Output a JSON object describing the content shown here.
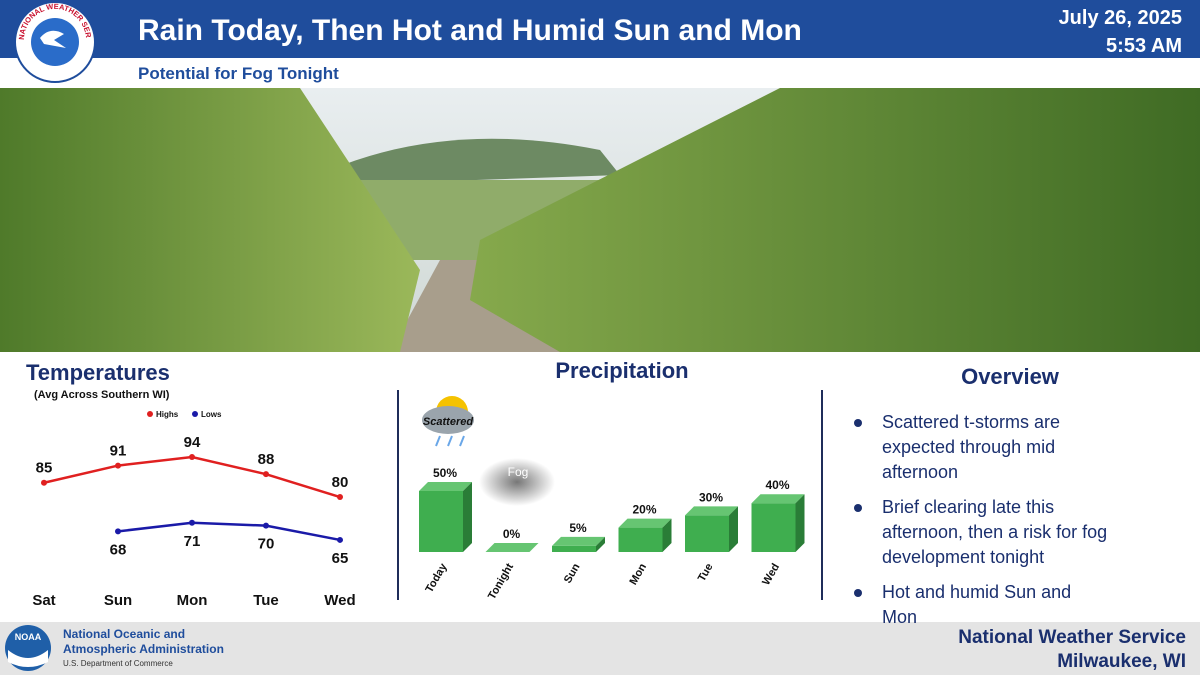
{
  "header": {
    "title": "Rain Today, Then Hot and Humid Sun and Mon",
    "subtitle": "Potential for Fog Tonight",
    "date": "July 26, 2025",
    "time": "5:53 AM",
    "logo_text": "NATIONAL WEATHER SERVICE"
  },
  "chart_data": [
    {
      "type": "line",
      "title": "Temperatures",
      "subtitle": "(Avg Across Southern WI)",
      "categories": [
        "Sat",
        "Sun",
        "Mon",
        "Tue",
        "Wed"
      ],
      "series": [
        {
          "name": "Highs",
          "color": "#e02020",
          "values": [
            85,
            91,
            94,
            88,
            80
          ]
        },
        {
          "name": "Lows",
          "color": "#1a1aa8",
          "values": [
            null,
            68,
            71,
            70,
            65
          ]
        }
      ]
    },
    {
      "type": "bar",
      "title": "Precipitation",
      "categories": [
        "Today",
        "Tonight",
        "Sun",
        "Mon",
        "Tue",
        "Wed"
      ],
      "values": [
        50,
        0,
        5,
        20,
        30,
        40
      ],
      "value_labels": [
        "50%",
        "0%",
        "5%",
        "20%",
        "30%",
        "40%"
      ],
      "color": "#3fae4f",
      "annotations": [
        "Scattered",
        "Fog"
      ]
    }
  ],
  "overview": {
    "title": "Overview",
    "bullets": [
      "Scattered t-storms are expected through mid afternoon",
      "Brief clearing late this afternoon, then a risk for fog development tonight",
      "Hot and humid Sun and Mon"
    ]
  },
  "footer": {
    "noaa_logo": "NOAA",
    "agency_line1": "National Oceanic and",
    "agency_line2": "Atmospheric Administration",
    "department": "U.S. Department of Commerce",
    "office": "National Weather Service",
    "location": "Milwaukee, WI"
  }
}
